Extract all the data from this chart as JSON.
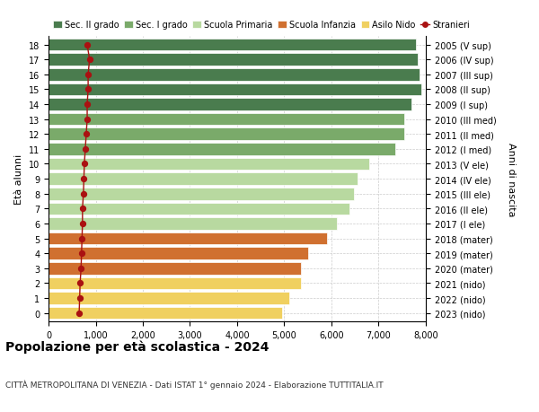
{
  "ages": [
    18,
    17,
    16,
    15,
    14,
    13,
    12,
    11,
    10,
    9,
    8,
    7,
    6,
    5,
    4,
    3,
    2,
    1,
    0
  ],
  "right_labels": [
    "2005 (V sup)",
    "2006 (IV sup)",
    "2007 (III sup)",
    "2008 (II sup)",
    "2009 (I sup)",
    "2010 (III med)",
    "2011 (II med)",
    "2012 (I med)",
    "2013 (V ele)",
    "2014 (IV ele)",
    "2015 (III ele)",
    "2016 (II ele)",
    "2017 (I ele)",
    "2018 (mater)",
    "2019 (mater)",
    "2020 (mater)",
    "2021 (nido)",
    "2022 (nido)",
    "2023 (nido)"
  ],
  "bar_values": [
    7800,
    7820,
    7870,
    7900,
    7700,
    7550,
    7550,
    7350,
    6800,
    6550,
    6480,
    6380,
    6120,
    5900,
    5500,
    5350,
    5350,
    5100,
    4950
  ],
  "stranieri_values": [
    820,
    870,
    840,
    840,
    820,
    820,
    800,
    780,
    760,
    750,
    740,
    720,
    720,
    710,
    700,
    690,
    670,
    660,
    650
  ],
  "bar_colors": [
    "#4a7c4e",
    "#4a7c4e",
    "#4a7c4e",
    "#4a7c4e",
    "#4a7c4e",
    "#7aaa6a",
    "#7aaa6a",
    "#7aaa6a",
    "#b8d9a0",
    "#b8d9a0",
    "#b8d9a0",
    "#b8d9a0",
    "#b8d9a0",
    "#d07030",
    "#d07030",
    "#d07030",
    "#f0d060",
    "#f0d060",
    "#f0d060"
  ],
  "legend_labels": [
    "Sec. II grado",
    "Sec. I grado",
    "Scuola Primaria",
    "Scuola Infanzia",
    "Asilo Nido",
    "Stranieri"
  ],
  "legend_colors": [
    "#4a7c4e",
    "#7aaa6a",
    "#b8d9a0",
    "#d07030",
    "#f0d060",
    "#aa1111"
  ],
  "stranieri_color": "#aa1111",
  "title": "Popolazione per età scolastica - 2024",
  "subtitle": "CITTÀ METROPOLITANA DI VENEZIA - Dati ISTAT 1° gennaio 2024 - Elaborazione TUTTITALIA.IT",
  "ylabel": "Età alunni",
  "right_ylabel": "Anni di nascita",
  "xlim": [
    0,
    8000
  ],
  "xticks": [
    0,
    1000,
    2000,
    3000,
    4000,
    5000,
    6000,
    7000,
    8000
  ],
  "xtick_labels": [
    "0",
    "1,000",
    "2,000",
    "3,000",
    "4,000",
    "5,000",
    "6,000",
    "7,000",
    "8,000"
  ],
  "bar_height": 0.82,
  "background_color": "#ffffff",
  "grid_color": "#cccccc"
}
